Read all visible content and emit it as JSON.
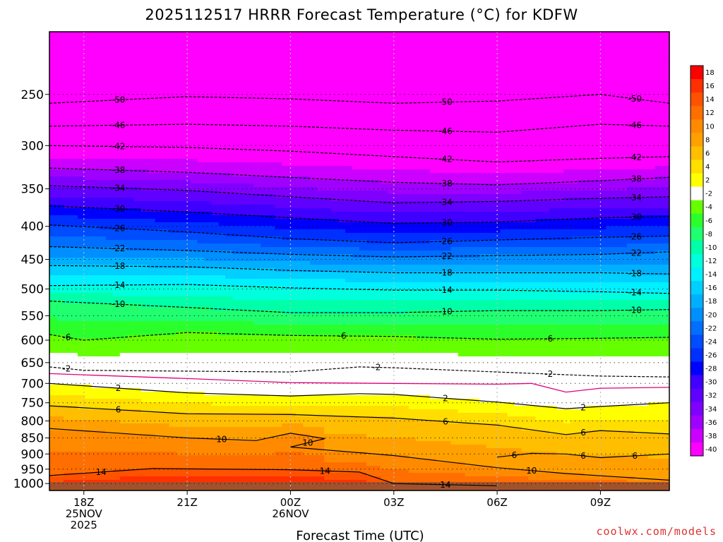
{
  "title": "2025112517 HRRR Forecast Temperature (°C) for KDFW",
  "xlabel": "Forecast Time (UTC)",
  "credit": "coolwx.com/models",
  "chart_data": {
    "type": "heatmap",
    "title": "2025112517 HRRR Forecast Temperature (°C) for KDFW",
    "xlabel": "Forecast Time (UTC)",
    "ylabel": "",
    "y_scale": "log",
    "y_inverted": true,
    "xlim_hours_utc": [
      "2025-11-25 17Z",
      "2025-11-26 11Z"
    ],
    "ylim_hpa": [
      1025,
      200
    ],
    "y_ticks": [
      250,
      300,
      350,
      400,
      450,
      500,
      550,
      600,
      650,
      700,
      750,
      800,
      850,
      900,
      950,
      1000
    ],
    "x_ticks": [
      {
        "time": "2025-11-25 18Z",
        "label": "18Z",
        "label2": "25NOV",
        "label3": "2025"
      },
      {
        "time": "2025-11-25 21Z",
        "label": "21Z",
        "label2": "",
        "label3": ""
      },
      {
        "time": "2025-11-26 00Z",
        "label": "00Z",
        "label2": "26NOV",
        "label3": ""
      },
      {
        "time": "2025-11-26 03Z",
        "label": "03Z",
        "label2": "",
        "label3": ""
      },
      {
        "time": "2025-11-26 06Z",
        "label": "06Z",
        "label2": "",
        "label3": ""
      },
      {
        "time": "2025-11-26 09Z",
        "label": "09Z",
        "label2": "",
        "label3": ""
      }
    ],
    "grid": "dotted",
    "colorbar": {
      "position": "right",
      "levels": [
        18,
        16,
        14,
        12,
        10,
        8,
        6,
        4,
        2,
        -2,
        -4,
        -6,
        -8,
        -10,
        -12,
        -14,
        -16,
        -18,
        -20,
        -22,
        -24,
        -26,
        -28,
        -30,
        -32,
        -34,
        -36,
        -38,
        -40
      ],
      "labels": [
        "18",
        "16",
        "14",
        "12",
        "10",
        "8",
        "6",
        "4",
        "2",
        "-2",
        "-4",
        "-6",
        "-8",
        "-10",
        "-12",
        "-14",
        "-16",
        "-18",
        "-20",
        "-22",
        "-24",
        "-26",
        "-28",
        "-30",
        "-32",
        "-34",
        "-36",
        "-38",
        "-40"
      ],
      "colors": [
        "#ff0000",
        "#ff3000",
        "#ff5200",
        "#ff6e00",
        "#ff8a00",
        "#ffa000",
        "#ffbe00",
        "#ffde00",
        "#ffff00",
        "#ffffff",
        "#66ff00",
        "#2bff2b",
        "#20ff70",
        "#00ffa8",
        "#00ffdc",
        "#00f0ff",
        "#00cfff",
        "#00b0ff",
        "#008fff",
        "#006eff",
        "#004cff",
        "#0030ff",
        "#0000ff",
        "#4000ff",
        "#6000ff",
        "#8000ff",
        "#a000ff",
        "#cc00ff",
        "#ff00ff"
      ]
    },
    "contours": [
      {
        "value": -50,
        "label": "-50",
        "style": "dashed",
        "points": [
          [
            "2025-11-25 17Z",
            258
          ],
          [
            "2025-11-25 21Z",
            252
          ],
          [
            "2025-11-26 00Z",
            254
          ],
          [
            "2025-11-26 03Z",
            258
          ],
          [
            "2025-11-26 06Z",
            256
          ],
          [
            "2025-11-26 09Z",
            250
          ],
          [
            "2025-11-26 11Z",
            258
          ]
        ]
      },
      {
        "value": -46,
        "label": "-46",
        "style": "dashed",
        "points": [
          [
            "2025-11-25 17Z",
            280
          ],
          [
            "2025-11-25 21Z",
            278
          ],
          [
            "2025-11-26 00Z",
            280
          ],
          [
            "2025-11-26 03Z",
            284
          ],
          [
            "2025-11-26 06Z",
            286
          ],
          [
            "2025-11-26 09Z",
            278
          ],
          [
            "2025-11-26 11Z",
            280
          ]
        ]
      },
      {
        "value": -42,
        "label": "-42",
        "style": "dashed",
        "points": [
          [
            "2025-11-25 17Z",
            300
          ],
          [
            "2025-11-25 21Z",
            302
          ],
          [
            "2025-11-26 00Z",
            306
          ],
          [
            "2025-11-26 03Z",
            312
          ],
          [
            "2025-11-26 06Z",
            318
          ],
          [
            "2025-11-26 09Z",
            314
          ],
          [
            "2025-11-26 11Z",
            312
          ]
        ]
      },
      {
        "value": -38,
        "label": "-38",
        "style": "dashed",
        "points": [
          [
            "2025-11-25 17Z",
            325
          ],
          [
            "2025-11-25 21Z",
            330
          ],
          [
            "2025-11-26 00Z",
            336
          ],
          [
            "2025-11-26 03Z",
            342
          ],
          [
            "2025-11-26 06Z",
            345
          ],
          [
            "2025-11-26 09Z",
            340
          ],
          [
            "2025-11-26 11Z",
            336
          ]
        ]
      },
      {
        "value": -34,
        "label": "-34",
        "style": "dashed",
        "points": [
          [
            "2025-11-25 17Z",
            346
          ],
          [
            "2025-11-25 21Z",
            352
          ],
          [
            "2025-11-26 00Z",
            360
          ],
          [
            "2025-11-26 03Z",
            368
          ],
          [
            "2025-11-26 06Z",
            366
          ],
          [
            "2025-11-26 09Z",
            362
          ],
          [
            "2025-11-26 11Z",
            360
          ]
        ]
      },
      {
        "value": -30,
        "label": "-30",
        "style": "dashed",
        "points": [
          [
            "2025-11-25 17Z",
            372
          ],
          [
            "2025-11-25 21Z",
            380
          ],
          [
            "2025-11-26 00Z",
            388
          ],
          [
            "2025-11-26 03Z",
            396
          ],
          [
            "2025-11-26 06Z",
            394
          ],
          [
            "2025-11-26 09Z",
            388
          ],
          [
            "2025-11-26 11Z",
            386
          ]
        ]
      },
      {
        "value": -26,
        "label": "-26",
        "style": "dashed",
        "points": [
          [
            "2025-11-25 17Z",
            398
          ],
          [
            "2025-11-25 21Z",
            408
          ],
          [
            "2025-11-26 00Z",
            418
          ],
          [
            "2025-11-26 03Z",
            424
          ],
          [
            "2025-11-26 06Z",
            420
          ],
          [
            "2025-11-26 09Z",
            416
          ],
          [
            "2025-11-26 11Z",
            414
          ]
        ]
      },
      {
        "value": -22,
        "label": "-22",
        "style": "dashed",
        "points": [
          [
            "2025-11-25 17Z",
            430
          ],
          [
            "2025-11-25 21Z",
            436
          ],
          [
            "2025-11-26 00Z",
            442
          ],
          [
            "2025-11-26 03Z",
            446
          ],
          [
            "2025-11-26 06Z",
            444
          ],
          [
            "2025-11-26 09Z",
            442
          ],
          [
            "2025-11-26 11Z",
            438
          ]
        ]
      },
      {
        "value": -18,
        "label": "-18",
        "style": "dashed",
        "points": [
          [
            "2025-11-25 17Z",
            460
          ],
          [
            "2025-11-25 21Z",
            462
          ],
          [
            "2025-11-26 00Z",
            468
          ],
          [
            "2025-11-26 03Z",
            472
          ],
          [
            "2025-11-26 06Z",
            472
          ],
          [
            "2025-11-26 09Z",
            472
          ],
          [
            "2025-11-26 11Z",
            474
          ]
        ]
      },
      {
        "value": -14,
        "label": "-14",
        "style": "dashed",
        "points": [
          [
            "2025-11-25 17Z",
            494
          ],
          [
            "2025-11-25 21Z",
            492
          ],
          [
            "2025-11-26 00Z",
            498
          ],
          [
            "2025-11-26 03Z",
            502
          ],
          [
            "2025-11-26 06Z",
            502
          ],
          [
            "2025-11-26 09Z",
            505
          ],
          [
            "2025-11-26 11Z",
            508
          ]
        ]
      },
      {
        "value": -10,
        "label": "-10",
        "style": "dashed",
        "points": [
          [
            "2025-11-25 17Z",
            522
          ],
          [
            "2025-11-25 21Z",
            534
          ],
          [
            "2025-11-26 00Z",
            544
          ],
          [
            "2025-11-26 03Z",
            544
          ],
          [
            "2025-11-26 06Z",
            540
          ],
          [
            "2025-11-26 09Z",
            540
          ],
          [
            "2025-11-26 11Z",
            538
          ]
        ]
      },
      {
        "value": -6,
        "label": "-6",
        "style": "dashed",
        "points": [
          [
            "2025-11-25 17Z",
            588
          ],
          [
            "2025-11-25 18Z",
            600
          ],
          [
            "2025-11-25 21Z",
            584
          ],
          [
            "2025-11-26 00Z",
            590
          ],
          [
            "2025-11-26 03Z",
            592
          ],
          [
            "2025-11-26 06Z",
            598
          ],
          [
            "2025-11-26 09Z",
            596
          ],
          [
            "2025-11-26 11Z",
            594
          ]
        ]
      },
      {
        "value": -2,
        "label": "-2",
        "style": "dashed",
        "points": [
          [
            "2025-11-25 17Z",
            660
          ],
          [
            "2025-11-25 18Z",
            668
          ],
          [
            "2025-11-25 21Z",
            670
          ],
          [
            "2025-11-26 00Z",
            672
          ],
          [
            "2025-11-26 02Z",
            660
          ],
          [
            "2025-11-26 03Z",
            662
          ],
          [
            "2025-11-26 06Z",
            672
          ],
          [
            "2025-11-26 09Z",
            682
          ],
          [
            "2025-11-26 11Z",
            684
          ]
        ]
      },
      {
        "value": 0,
        "label": "",
        "style": "magenta",
        "points": [
          [
            "2025-11-25 17Z",
            676
          ],
          [
            "2025-11-25 21Z",
            688
          ],
          [
            "2025-11-26 00Z",
            698
          ],
          [
            "2025-11-26 03Z",
            700
          ],
          [
            "2025-11-26 06Z",
            702
          ],
          [
            "2025-11-26 07Z",
            700
          ],
          [
            "2025-11-26 08Z",
            722
          ],
          [
            "2025-11-26 09Z",
            712
          ],
          [
            "2025-11-26 11Z",
            710
          ]
        ]
      },
      {
        "value": 2,
        "label": "2",
        "style": "solid",
        "points": [
          [
            "2025-11-25 17Z",
            700
          ],
          [
            "2025-11-25 21Z",
            724
          ],
          [
            "2025-11-26 00Z",
            732
          ],
          [
            "2025-11-26 02Z",
            726
          ],
          [
            "2025-11-26 03Z",
            728
          ],
          [
            "2025-11-26 06Z",
            748
          ],
          [
            "2025-11-26 08Z",
            766
          ],
          [
            "2025-11-26 09Z",
            760
          ],
          [
            "2025-11-26 11Z",
            750
          ]
        ]
      },
      {
        "value": 6,
        "label": "6",
        "style": "solid",
        "points": [
          [
            "2025-11-25 17Z",
            758
          ],
          [
            "2025-11-25 21Z",
            780
          ],
          [
            "2025-11-26 00Z",
            782
          ],
          [
            "2025-11-26 03Z",
            792
          ],
          [
            "2025-11-26 06Z",
            812
          ],
          [
            "2025-11-26 08Z",
            840
          ],
          [
            "2025-11-26 09Z",
            828
          ],
          [
            "2025-11-26 11Z",
            838
          ]
        ]
      },
      {
        "value": 10,
        "label": "10",
        "style": "solid",
        "points": [
          [
            "2025-11-25 17Z",
            822
          ],
          [
            "2025-11-25 21Z",
            850
          ],
          [
            "2025-11-25 23Z",
            858
          ],
          [
            "2025-11-26 00Z",
            836
          ],
          [
            "2025-11-26 01Z",
            852
          ],
          [
            "2025-11-26 00Z",
            878
          ],
          [
            "2025-11-26 03Z",
            905
          ],
          [
            "2025-11-26 06Z",
            945
          ],
          [
            "2025-11-26 08Z",
            965
          ],
          [
            "2025-11-26 11Z",
            988
          ]
        ]
      },
      {
        "value": 6,
        "label": "6",
        "style": "solid",
        "points": [
          [
            "2025-11-26 06Z",
            910
          ],
          [
            "2025-11-26 07Z",
            898
          ],
          [
            "2025-11-26 08Z",
            900
          ],
          [
            "2025-11-26 09Z",
            912
          ],
          [
            "2025-11-26 11Z",
            900
          ]
        ]
      },
      {
        "value": 14,
        "label": "14",
        "style": "solid",
        "points": [
          [
            "2025-11-25 17Z",
            972
          ],
          [
            "2025-11-25 20Z",
            948
          ],
          [
            "2025-11-26 00Z",
            952
          ],
          [
            "2025-11-26 02Z",
            960
          ],
          [
            "2025-11-26 03Z",
            1000
          ],
          [
            "2025-11-26 06Z",
            1008
          ]
        ]
      }
    ],
    "ground": {
      "color": "#a0522d",
      "top_hpa": 1000
    }
  }
}
